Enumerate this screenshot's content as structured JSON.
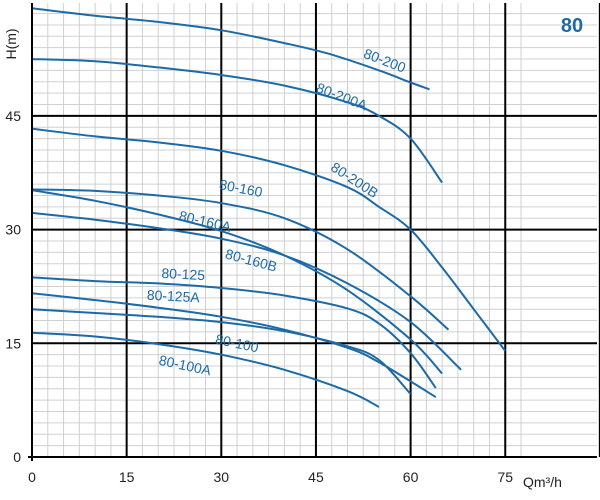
{
  "chart_data": {
    "type": "line",
    "title": "80",
    "xlabel": "Qm³/h",
    "ylabel": "H(m)",
    "xlim": [
      0,
      80
    ],
    "ylim": [
      0,
      60
    ],
    "x_ticks": [
      0,
      15,
      30,
      45,
      60,
      75
    ],
    "y_ticks": [
      0,
      15,
      30,
      45
    ],
    "grid": true,
    "colors": {
      "curve": "#1c6aa8",
      "major_grid": "#000000",
      "minor_grid": "#d0d0d0",
      "title": "#1c6aa8"
    },
    "series": [
      {
        "name": "80-200",
        "x": [
          0,
          10,
          20,
          30,
          40,
          47,
          55,
          60,
          63
        ],
        "y": [
          59.2,
          58.2,
          57.4,
          56.3,
          54.6,
          53.2,
          51.0,
          49.4,
          48.5
        ]
      },
      {
        "name": "80-200A",
        "x": [
          0,
          10,
          20,
          30,
          40,
          50,
          55,
          60,
          65
        ],
        "y": [
          52.5,
          52.2,
          51.4,
          50.4,
          49.0,
          46.8,
          45.0,
          42.0,
          36.2
        ]
      },
      {
        "name": "80-200B",
        "x": [
          0,
          10,
          20,
          30,
          40,
          50,
          55,
          60,
          65,
          70,
          75
        ],
        "y": [
          43.3,
          42.3,
          41.5,
          40.4,
          38.5,
          35.6,
          33.0,
          30.0,
          25.0,
          19.5,
          14.0
        ]
      },
      {
        "name": "80-160",
        "x": [
          0,
          10,
          20,
          30,
          40,
          50,
          60,
          66
        ],
        "y": [
          35.3,
          35.1,
          34.5,
          33.5,
          31.5,
          27.4,
          21.2,
          16.8
        ]
      },
      {
        "name": "80-160A",
        "x": [
          0,
          10,
          20,
          30,
          40,
          50,
          60,
          68
        ],
        "y": [
          32.2,
          31.3,
          30.2,
          28.8,
          26.6,
          22.9,
          17.8,
          11.5
        ]
      },
      {
        "name": "80-160B",
        "x": [
          0,
          10,
          20,
          30,
          40,
          50,
          60,
          65
        ],
        "y": [
          35.2,
          33.8,
          32.0,
          29.8,
          26.6,
          22.0,
          15.5,
          11.0
        ]
      },
      {
        "name": "80-125",
        "x": [
          0,
          10,
          20,
          30,
          40,
          50,
          55,
          60,
          64
        ],
        "y": [
          23.7,
          23.2,
          22.9,
          22.3,
          21.3,
          19.6,
          17.6,
          13.7,
          9.1
        ]
      },
      {
        "name": "80-125A",
        "x": [
          0,
          10,
          20,
          30,
          40,
          50,
          55,
          64
        ],
        "y": [
          21.6,
          20.7,
          19.7,
          18.5,
          16.8,
          14.4,
          12.5,
          7.9
        ]
      },
      {
        "name": "80-100",
        "x": [
          0,
          10,
          20,
          30,
          40,
          50,
          55,
          60
        ],
        "y": [
          19.5,
          19.0,
          18.5,
          17.8,
          16.6,
          14.6,
          12.8,
          8.3
        ]
      },
      {
        "name": "80-100A",
        "x": [
          0,
          10,
          20,
          30,
          40,
          50,
          55
        ],
        "y": [
          16.4,
          15.9,
          14.9,
          13.5,
          11.5,
          8.7,
          6.6
        ]
      }
    ]
  }
}
